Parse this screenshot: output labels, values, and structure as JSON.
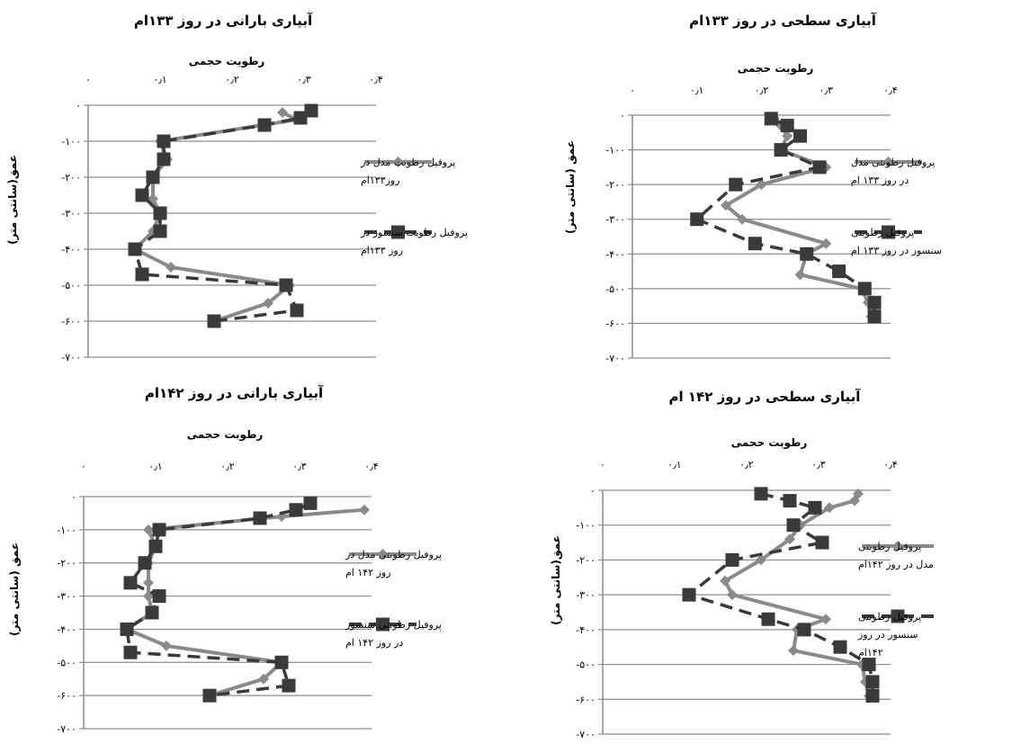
{
  "colors": {
    "model": "#8a8a8a",
    "sensor": "#3a3a3a",
    "grid": "#8c8c8c",
    "axis": "#8c8c8c"
  },
  "chart_data": [
    {
      "type": "line",
      "title": "آبیاری سطحی در روز ۱۳۳ام",
      "xlabel": "رطوبت حجمی",
      "ylabel": "عمق (سانتی متر)",
      "x_tick_labels": [
        "۰",
        "۰٫۱",
        "۰٫۲",
        "۰٫۳",
        "۰٫۴"
      ],
      "y_tick_labels": [
        "۰",
        "-۱۰۰",
        "-۲۰۰",
        "-۳۰۰",
        "-۴۰۰",
        "-۵۰۰",
        "-۶۰۰",
        "-۷۰۰"
      ],
      "xlim": [
        0,
        0.4
      ],
      "ylim": [
        -700,
        0
      ],
      "series": [
        {
          "name": "پروفیل رطوبتی مدل در روز ۱۳۳ ام",
          "legend_lines": [
            "پروفیل رطوبتی مدل",
            "در روز ۱۳۳ ام"
          ],
          "style": "solid-diamond",
          "points": [
            [
              0.22,
              -10
            ],
            [
              0.23,
              -30
            ],
            [
              0.24,
              -60
            ],
            [
              0.23,
              -100
            ],
            [
              0.3,
              -150
            ],
            [
              0.2,
              -200
            ],
            [
              0.145,
              -260
            ],
            [
              0.17,
              -300
            ],
            [
              0.3,
              -370
            ],
            [
              0.27,
              -400
            ],
            [
              0.26,
              -460
            ],
            [
              0.355,
              -500
            ],
            [
              0.365,
              -540
            ],
            [
              0.37,
              -580
            ]
          ]
        },
        {
          "name": "پروفیل رطوبتی سنسور در روز ۱۳۳ ام",
          "legend_lines": [
            "پروفیل رطوبتی",
            "سنسور در روز ۱۳۳ ام"
          ],
          "style": "dashed-square",
          "points": [
            [
              0.215,
              -10
            ],
            [
              0.24,
              -30
            ],
            [
              0.26,
              -60
            ],
            [
              0.23,
              -100
            ],
            [
              0.29,
              -150
            ],
            [
              0.16,
              -200
            ],
            [
              0.1,
              -300
            ],
            [
              0.19,
              -370
            ],
            [
              0.27,
              -400
            ],
            [
              0.32,
              -450
            ],
            [
              0.36,
              -500
            ],
            [
              0.375,
              -540
            ],
            [
              0.375,
              -580
            ]
          ]
        }
      ]
    },
    {
      "type": "line",
      "title": "آبیاری بارانی در روز ۱۳۳ام",
      "xlabel": "رطوبت حجمی",
      "ylabel": "عمق(سانتی متر)",
      "x_tick_labels": [
        "۰",
        "۰٫۱",
        "۰٫۲",
        "۰٫۳",
        "۰٫۴"
      ],
      "y_tick_labels": [
        "۰",
        "-۱۰۰",
        "-۲۰۰",
        "-۳۰۰",
        "-۴۰۰",
        "-۵۰۰",
        "-۶۰۰",
        "-۷۰۰"
      ],
      "xlim": [
        0,
        0.4
      ],
      "ylim": [
        -700,
        0
      ],
      "series": [
        {
          "name": "پروفیل رطوبت مدل در روز۱۳۳ام",
          "legend_lines": [
            "پروفیل رطوبت مدل در",
            "روز۱۳۳ام"
          ],
          "style": "solid-diamond",
          "points": [
            [
              0.27,
              -20
            ],
            [
              0.29,
              -40
            ],
            [
              0.1,
              -100
            ],
            [
              0.11,
              -150
            ],
            [
              0.09,
              -200
            ],
            [
              0.09,
              -260
            ],
            [
              0.1,
              -300
            ],
            [
              0.09,
              -350
            ],
            [
              0.065,
              -400
            ],
            [
              0.115,
              -450
            ],
            [
              0.28,
              -500
            ],
            [
              0.25,
              -550
            ],
            [
              0.175,
              -600
            ]
          ]
        },
        {
          "name": "پروفیل رطوبت سنسور در روز ۱۳۳ام",
          "legend_lines": [
            "پروفیل رطوبت سنسور در",
            "روز ۱۳۳ام"
          ],
          "style": "dashed-square",
          "points": [
            [
              0.31,
              -15
            ],
            [
              0.295,
              -35
            ],
            [
              0.245,
              -55
            ],
            [
              0.105,
              -100
            ],
            [
              0.105,
              -150
            ],
            [
              0.09,
              -200
            ],
            [
              0.075,
              -250
            ],
            [
              0.1,
              -300
            ],
            [
              0.1,
              -350
            ],
            [
              0.065,
              -400
            ],
            [
              0.075,
              -470
            ],
            [
              0.275,
              -500
            ],
            [
              0.29,
              -570
            ],
            [
              0.175,
              -600
            ]
          ]
        }
      ]
    },
    {
      "type": "line",
      "title": "آبیاری سطحی در روز ۱۴۲ ام",
      "xlabel": "رطوبت حجمی",
      "ylabel": "عمق(سانتی متر)",
      "x_tick_labels": [
        "۰",
        "۰٫۱",
        "۰٫۲",
        "۰٫۳",
        "۰٫۴"
      ],
      "y_tick_labels": [
        "۰",
        "-۱۰۰",
        "-۲۰۰",
        "-۳۰۰",
        "-۴۰۰",
        "-۵۰۰",
        "-۶۰۰",
        "-۷۰۰"
      ],
      "xlim": [
        0,
        0.4
      ],
      "ylim": [
        -700,
        0
      ],
      "series": [
        {
          "name": "پروفیل رطوبتی مدل در روز ۱۴۲ام",
          "legend_lines": [
            "پروفیل رطوبتی",
            "مدل در روز ۱۴۲ام"
          ],
          "style": "solid-diamond",
          "points": [
            [
              0.355,
              -10
            ],
            [
              0.35,
              -30
            ],
            [
              0.315,
              -50
            ],
            [
              0.275,
              -100
            ],
            [
              0.26,
              -140
            ],
            [
              0.22,
              -200
            ],
            [
              0.17,
              -260
            ],
            [
              0.18,
              -300
            ],
            [
              0.31,
              -370
            ],
            [
              0.27,
              -400
            ],
            [
              0.265,
              -460
            ],
            [
              0.36,
              -500
            ],
            [
              0.365,
              -550
            ],
            [
              0.37,
              -590
            ]
          ]
        },
        {
          "name": "پروفیل رطوبتی سنسور در روز ۱۴۲ام",
          "legend_lines": [
            "پروفیل رطوبتی",
            "سنسور در روز",
            "۱۴۲ام"
          ],
          "style": "dashed-square",
          "points": [
            [
              0.22,
              -10
            ],
            [
              0.26,
              -30
            ],
            [
              0.295,
              -50
            ],
            [
              0.265,
              -100
            ],
            [
              0.305,
              -150
            ],
            [
              0.18,
              -200
            ],
            [
              0.12,
              -300
            ],
            [
              0.23,
              -370
            ],
            [
              0.28,
              -400
            ],
            [
              0.33,
              -450
            ],
            [
              0.37,
              -500
            ],
            [
              0.375,
              -550
            ],
            [
              0.375,
              -590
            ]
          ]
        }
      ]
    },
    {
      "type": "line",
      "title": "آبیاری بارانی در روز ۱۴۲ام",
      "xlabel": "رطوبت حجمی",
      "ylabel": "عمق (سانتی متر)",
      "x_tick_labels": [
        "۰",
        "۰٫۱",
        "۰٫۲",
        "۰٫۳",
        "۰٫۴"
      ],
      "y_tick_labels": [
        "۰",
        "-۱۰۰",
        "-۲۰۰",
        "-۳۰۰",
        "-۴۰۰",
        "-۵۰۰",
        "-۶۰۰",
        "-۷۰۰"
      ],
      "xlim": [
        0,
        0.4
      ],
      "ylim": [
        -700,
        0
      ],
      "series": [
        {
          "name": "پروفیل رطوبتی مدل در روز ۱۴۲ ام",
          "legend_lines": [
            "پروفیل رطوبتی مدل در",
            "روز ۱۴۲ ام"
          ],
          "style": "solid-diamond",
          "points": [
            [
              0.39,
              -40
            ],
            [
              0.275,
              -60
            ],
            [
              0.09,
              -100
            ],
            [
              0.1,
              -150
            ],
            [
              0.09,
              -200
            ],
            [
              0.09,
              -260
            ],
            [
              0.09,
              -300
            ],
            [
              0.095,
              -350
            ],
            [
              0.06,
              -400
            ],
            [
              0.115,
              -450
            ],
            [
              0.275,
              -500
            ],
            [
              0.25,
              -550
            ],
            [
              0.175,
              -600
            ]
          ]
        },
        {
          "name": "پروفیل رطوبتی سنسور در روز ۱۴۲ ام",
          "legend_lines": [
            "پروفیل رطوبتی سنسور",
            "در روز ۱۴۲ ام"
          ],
          "style": "dashed-square",
          "points": [
            [
              0.315,
              -20
            ],
            [
              0.295,
              -40
            ],
            [
              0.245,
              -65
            ],
            [
              0.105,
              -100
            ],
            [
              0.1,
              -150
            ],
            [
              0.085,
              -200
            ],
            [
              0.065,
              -260
            ],
            [
              0.105,
              -300
            ],
            [
              0.095,
              -350
            ],
            [
              0.06,
              -400
            ],
            [
              0.065,
              -470
            ],
            [
              0.275,
              -500
            ],
            [
              0.285,
              -570
            ],
            [
              0.175,
              -600
            ]
          ]
        }
      ]
    }
  ]
}
